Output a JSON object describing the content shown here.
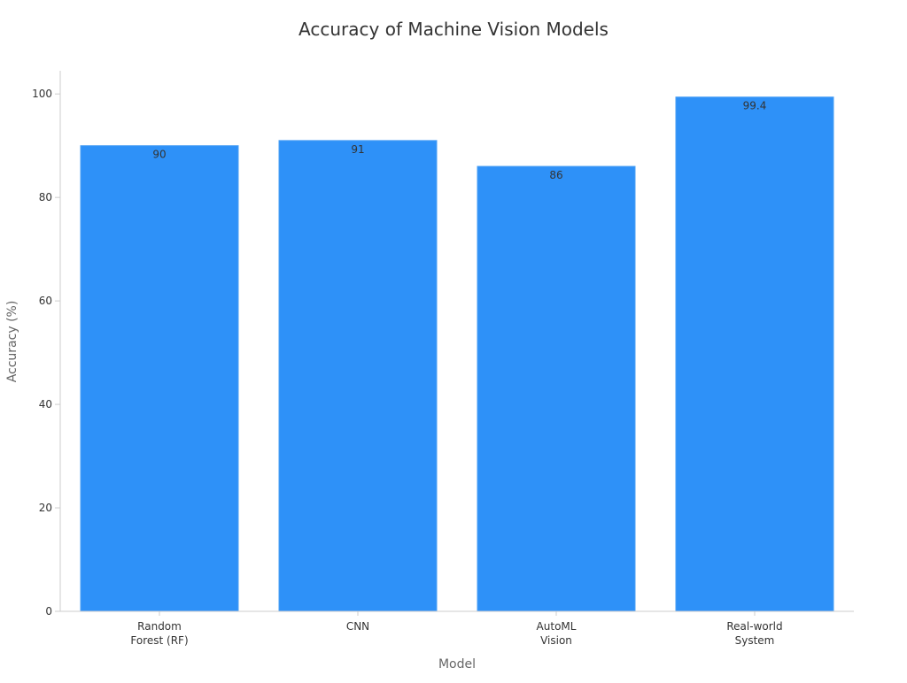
{
  "chart_data": {
    "type": "bar",
    "title": "Accuracy of Machine Vision Models",
    "xlabel": "Model",
    "ylabel": "Accuracy (%)",
    "categories": [
      [
        "Random",
        "Forest (RF)"
      ],
      [
        "CNN"
      ],
      [
        "AutoML",
        "Vision"
      ],
      [
        "Real-world",
        "System"
      ]
    ],
    "values": [
      90,
      91,
      86,
      99.4
    ],
    "value_labels": [
      "90",
      "91",
      "86",
      "99.4"
    ],
    "ylim": [
      0,
      104.5
    ],
    "yticks": [
      0,
      20,
      40,
      60,
      80,
      100
    ],
    "grid": false,
    "legend": "none",
    "colors": {
      "bar": "#2e91f8",
      "bar_edge": "#4a9ff5",
      "axis": "#cccccc",
      "title": "#333333",
      "axis_label": "#666666",
      "tick_label": "#333333",
      "value_label": "#333333"
    }
  }
}
